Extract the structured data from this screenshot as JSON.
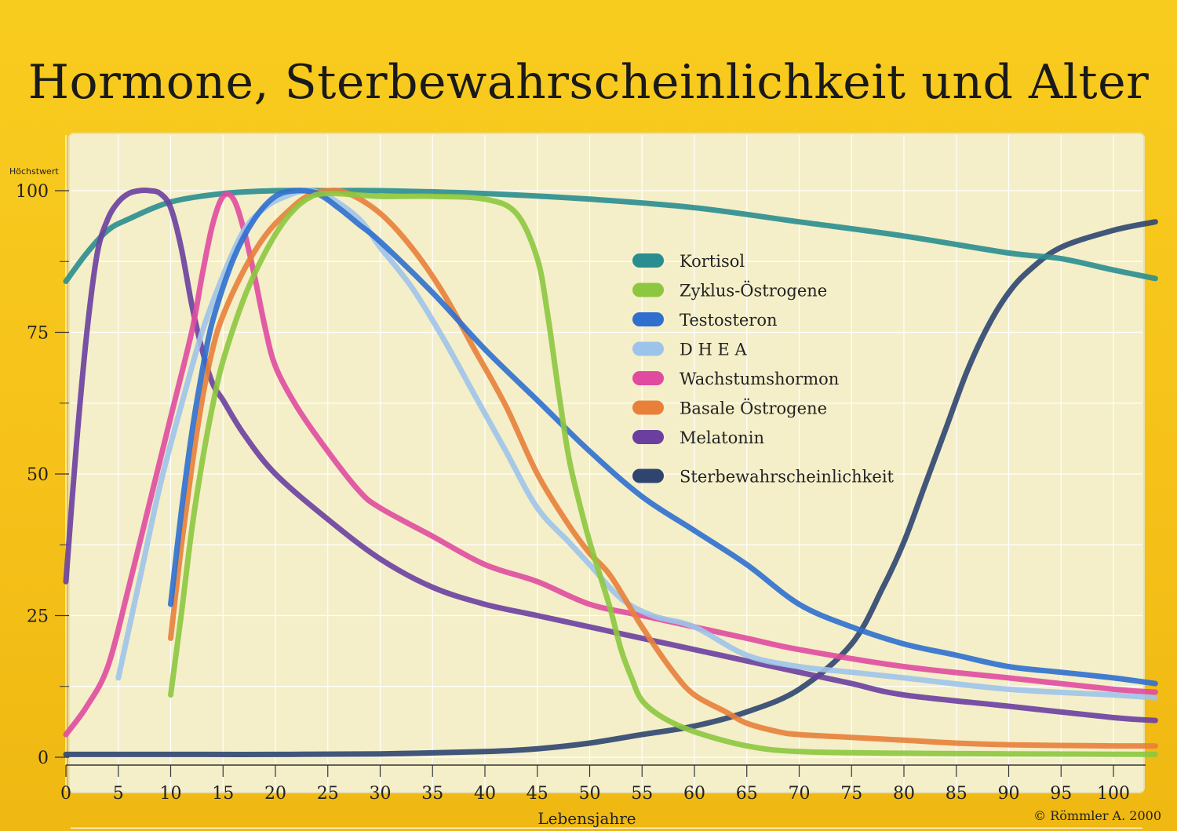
{
  "chart_data": {
    "type": "line",
    "title": "Hormone, Sterbewahrscheinlichkeit und Alter",
    "xlabel": "Lebensjahre",
    "ylabel": "Höchstwert",
    "xlim": [
      0,
      104
    ],
    "ylim": [
      0,
      100
    ],
    "xticks": [
      0,
      5,
      10,
      15,
      20,
      25,
      30,
      35,
      40,
      45,
      50,
      55,
      60,
      65,
      70,
      75,
      80,
      85,
      90,
      95,
      100
    ],
    "yticks": [
      0,
      25,
      50,
      75,
      100
    ],
    "grid": true,
    "legend_position": "center-right",
    "series": [
      {
        "name": "Kortisol",
        "color": "#2a8d8f",
        "points": [
          [
            0,
            84
          ],
          [
            2,
            89
          ],
          [
            4,
            93
          ],
          [
            6,
            95
          ],
          [
            10,
            98
          ],
          [
            15,
            99.5
          ],
          [
            20,
            100
          ],
          [
            25,
            100
          ],
          [
            30,
            100
          ],
          [
            40,
            99.5
          ],
          [
            50,
            98.5
          ],
          [
            60,
            97
          ],
          [
            70,
            94.5
          ],
          [
            80,
            92
          ],
          [
            90,
            89
          ],
          [
            95,
            88
          ],
          [
            100,
            86
          ],
          [
            104,
            84.5
          ]
        ]
      },
      {
        "name": "Zyklus-Östrogene",
        "color": "#8dc63f",
        "points": [
          [
            10,
            11
          ],
          [
            11,
            25
          ],
          [
            12,
            40
          ],
          [
            13,
            52
          ],
          [
            14,
            62
          ],
          [
            15,
            70
          ],
          [
            17,
            81
          ],
          [
            19,
            89
          ],
          [
            21,
            95
          ],
          [
            23,
            98.5
          ],
          [
            25,
            99.5
          ],
          [
            30,
            99
          ],
          [
            35,
            99
          ],
          [
            40,
            98.5
          ],
          [
            43,
            96
          ],
          [
            45,
            88
          ],
          [
            46,
            78
          ],
          [
            47,
            65
          ],
          [
            48,
            53
          ],
          [
            49,
            45
          ],
          [
            50,
            38
          ],
          [
            51,
            32
          ],
          [
            52,
            26
          ],
          [
            53,
            19
          ],
          [
            54,
            14
          ],
          [
            55,
            10
          ],
          [
            57,
            7
          ],
          [
            60,
            4.5
          ],
          [
            65,
            2
          ],
          [
            70,
            1
          ],
          [
            80,
            0.7
          ],
          [
            90,
            0.6
          ],
          [
            104,
            0.5
          ]
        ]
      },
      {
        "name": "Testosteron",
        "color": "#2f6fcf",
        "points": [
          [
            10,
            27
          ],
          [
            11,
            43
          ],
          [
            12,
            57
          ],
          [
            13,
            68
          ],
          [
            14,
            77
          ],
          [
            16,
            88
          ],
          [
            18,
            95
          ],
          [
            20,
            99
          ],
          [
            22,
            100
          ],
          [
            24,
            99.5
          ],
          [
            26,
            97
          ],
          [
            28,
            94
          ],
          [
            30,
            91
          ],
          [
            35,
            82
          ],
          [
            40,
            72
          ],
          [
            45,
            63
          ],
          [
            50,
            54
          ],
          [
            55,
            46
          ],
          [
            60,
            40
          ],
          [
            65,
            34
          ],
          [
            70,
            27
          ],
          [
            75,
            23
          ],
          [
            80,
            20
          ],
          [
            85,
            18
          ],
          [
            90,
            16
          ],
          [
            95,
            15
          ],
          [
            100,
            14
          ],
          [
            104,
            13
          ]
        ]
      },
      {
        "name": "D H E A",
        "color": "#9ec3ea",
        "points": [
          [
            5,
            14
          ],
          [
            7,
            31
          ],
          [
            9,
            48
          ],
          [
            11,
            62
          ],
          [
            13,
            75
          ],
          [
            15,
            85
          ],
          [
            17,
            93
          ],
          [
            19,
            97
          ],
          [
            21,
            99
          ],
          [
            23,
            100
          ],
          [
            25,
            99
          ],
          [
            28,
            95
          ],
          [
            30,
            90
          ],
          [
            33,
            83
          ],
          [
            36,
            74
          ],
          [
            39,
            64
          ],
          [
            42,
            54
          ],
          [
            45,
            44
          ],
          [
            48,
            38
          ],
          [
            50,
            34
          ],
          [
            53,
            28
          ],
          [
            56,
            25
          ],
          [
            60,
            23
          ],
          [
            65,
            18
          ],
          [
            70,
            16
          ],
          [
            75,
            15
          ],
          [
            80,
            14
          ],
          [
            90,
            12
          ],
          [
            100,
            11
          ],
          [
            104,
            10.5
          ]
        ]
      },
      {
        "name": "Wachstumshormon",
        "color": "#e04ba0",
        "points": [
          [
            0,
            4
          ],
          [
            2,
            9
          ],
          [
            4,
            16
          ],
          [
            6,
            30
          ],
          [
            8,
            45
          ],
          [
            10,
            60
          ],
          [
            12,
            75
          ],
          [
            13,
            85
          ],
          [
            14,
            94
          ],
          [
            15,
            99
          ],
          [
            16,
            98.5
          ],
          [
            17,
            93
          ],
          [
            18,
            85
          ],
          [
            19,
            76
          ],
          [
            20,
            69
          ],
          [
            22,
            62
          ],
          [
            25,
            54
          ],
          [
            28,
            47
          ],
          [
            30,
            44
          ],
          [
            35,
            39
          ],
          [
            40,
            34
          ],
          [
            45,
            31
          ],
          [
            50,
            27
          ],
          [
            55,
            25
          ],
          [
            60,
            23
          ],
          [
            65,
            21
          ],
          [
            70,
            19
          ],
          [
            80,
            16
          ],
          [
            90,
            14
          ],
          [
            100,
            12
          ],
          [
            104,
            11.5
          ]
        ]
      },
      {
        "name": "Basale Östrogene",
        "color": "#e8803a",
        "points": [
          [
            10,
            21
          ],
          [
            11,
            37
          ],
          [
            12,
            51
          ],
          [
            13,
            63
          ],
          [
            14,
            72
          ],
          [
            15,
            78
          ],
          [
            17,
            86
          ],
          [
            19,
            92
          ],
          [
            21,
            96
          ],
          [
            23,
            99
          ],
          [
            25,
            100
          ],
          [
            27,
            99.5
          ],
          [
            30,
            96
          ],
          [
            33,
            90
          ],
          [
            36,
            82
          ],
          [
            39,
            72
          ],
          [
            42,
            62
          ],
          [
            45,
            50
          ],
          [
            48,
            41
          ],
          [
            50,
            36
          ],
          [
            52,
            32
          ],
          [
            55,
            23
          ],
          [
            58,
            15
          ],
          [
            60,
            11
          ],
          [
            63,
            8
          ],
          [
            65,
            6
          ],
          [
            68,
            4.5
          ],
          [
            70,
            4
          ],
          [
            75,
            3.5
          ],
          [
            80,
            3
          ],
          [
            85,
            2.5
          ],
          [
            90,
            2.2
          ],
          [
            100,
            2
          ],
          [
            104,
            2
          ]
        ]
      },
      {
        "name": "Melatonin",
        "color": "#6a3fa0",
        "points": [
          [
            0,
            31
          ],
          [
            1,
            55
          ],
          [
            2,
            75
          ],
          [
            3,
            89
          ],
          [
            4,
            95
          ],
          [
            5,
            98
          ],
          [
            6,
            99.5
          ],
          [
            7,
            100
          ],
          [
            8,
            100
          ],
          [
            9,
            99.5
          ],
          [
            10,
            97
          ],
          [
            11,
            90
          ],
          [
            12,
            80
          ],
          [
            13,
            72
          ],
          [
            14,
            66
          ],
          [
            15,
            63
          ],
          [
            17,
            57
          ],
          [
            20,
            50
          ],
          [
            25,
            42
          ],
          [
            30,
            35
          ],
          [
            35,
            30
          ],
          [
            40,
            27
          ],
          [
            45,
            25
          ],
          [
            50,
            23
          ],
          [
            55,
            21
          ],
          [
            60,
            19
          ],
          [
            65,
            17
          ],
          [
            70,
            15
          ],
          [
            75,
            13
          ],
          [
            80,
            11
          ],
          [
            90,
            9
          ],
          [
            100,
            7
          ],
          [
            104,
            6.5
          ]
        ]
      },
      {
        "name": "Sterbewahrscheinlichkeit",
        "color": "#2f4570",
        "points": [
          [
            0,
            0.5
          ],
          [
            10,
            0.5
          ],
          [
            20,
            0.5
          ],
          [
            30,
            0.6
          ],
          [
            40,
            1
          ],
          [
            45,
            1.5
          ],
          [
            50,
            2.5
          ],
          [
            55,
            4
          ],
          [
            60,
            5.5
          ],
          [
            65,
            8
          ],
          [
            70,
            12
          ],
          [
            75,
            20
          ],
          [
            78,
            30
          ],
          [
            80,
            38
          ],
          [
            82,
            48
          ],
          [
            84,
            58
          ],
          [
            86,
            68
          ],
          [
            88,
            76
          ],
          [
            90,
            82
          ],
          [
            92,
            86
          ],
          [
            95,
            90
          ],
          [
            100,
            93
          ],
          [
            104,
            94.5
          ]
        ]
      }
    ],
    "legend_groups": [
      7,
      1
    ],
    "credit": "© Römmler A. 2000"
  }
}
